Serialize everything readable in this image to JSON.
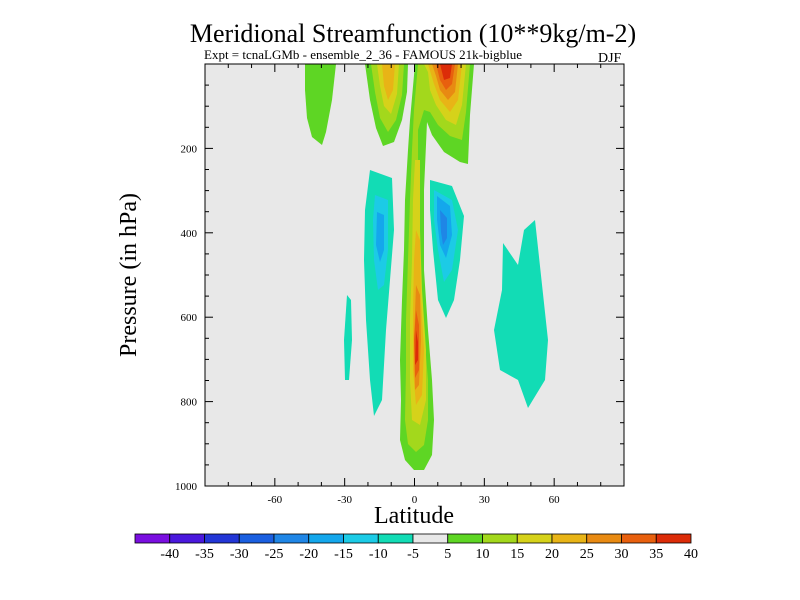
{
  "chart_data": {
    "type": "heatmap",
    "title": "Meridional Streamfunction (10**9kg/m-2)",
    "subtitle": "Expt = tcnaLGMb - ensemble_2_36 - FAMOUS 21k-bigblue",
    "season": "DJF",
    "xlabel": "Latitude",
    "ylabel": "Pressure (in hPa)",
    "xlim": [
      -90,
      90
    ],
    "ylim": [
      1000,
      0
    ],
    "xticks": [
      -60,
      -30,
      0,
      30,
      60
    ],
    "yticks": [
      200,
      400,
      600,
      800,
      1000
    ],
    "colorbar": {
      "labels": [
        "-40",
        "-35",
        "-30",
        "-25",
        "-20",
        "-15",
        "-10",
        "-5",
        "5",
        "10",
        "15",
        "20",
        "25",
        "30",
        "35",
        "40"
      ],
      "colors": [
        "#7a0fe0",
        "#4a18dd",
        "#2336d6",
        "#1a5fe0",
        "#1f86e6",
        "#14a7ec",
        "#1ccbe6",
        "#12dcb5",
        "#e8e8e8",
        "#5ed624",
        "#a3d81c",
        "#d6d21a",
        "#e8b416",
        "#e88a12",
        "#e8600e",
        "#dc2c08"
      ]
    },
    "cells": [
      {
        "lat": -34,
        "p": 100,
        "value": 7
      },
      {
        "lat": -14,
        "p": 80,
        "value": 22
      },
      {
        "lat": 13,
        "p": 60,
        "value": 40
      },
      {
        "lat": 2,
        "p": 650,
        "value": 38
      },
      {
        "lat": -15,
        "p": 380,
        "value": -12
      },
      {
        "lat": 13,
        "p": 380,
        "value": -22
      },
      {
        "lat": -28,
        "p": 670,
        "value": -7
      },
      {
        "lat": 47,
        "p": 620,
        "value": -7
      }
    ]
  }
}
